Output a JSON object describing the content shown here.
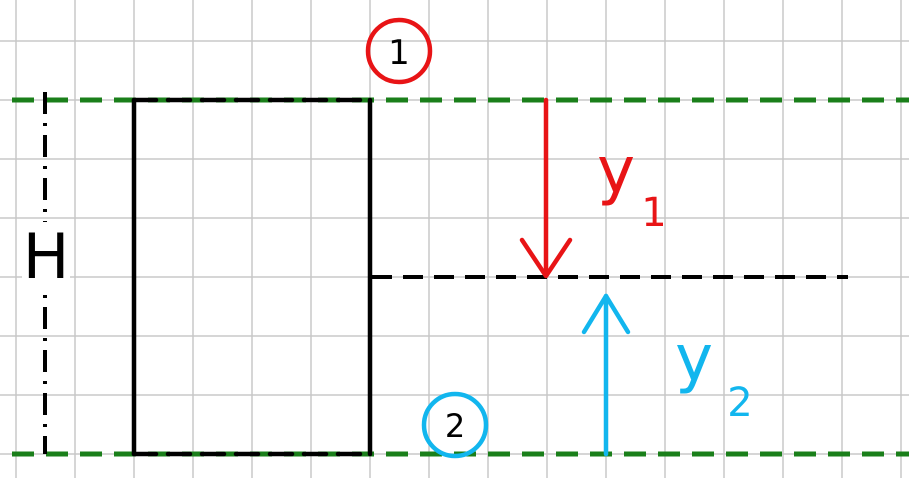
{
  "colors": {
    "grid": "#c8c8c8",
    "background": "#ffffff",
    "level_line": "#1a7f1a",
    "vessel": "#000000",
    "mid_line": "#000000",
    "section_1": "#e81416",
    "section_2": "#12b6ee",
    "height_marker": "#000000"
  },
  "labels": {
    "height": "H",
    "section_1": "1",
    "section_2": "2",
    "y1_letter": "y",
    "y1_sub": "1",
    "y2_letter": "y",
    "y2_sub": "2"
  },
  "icons": {
    "y1_arrow": "arrow-down-icon",
    "y2_arrow": "arrow-up-icon"
  }
}
